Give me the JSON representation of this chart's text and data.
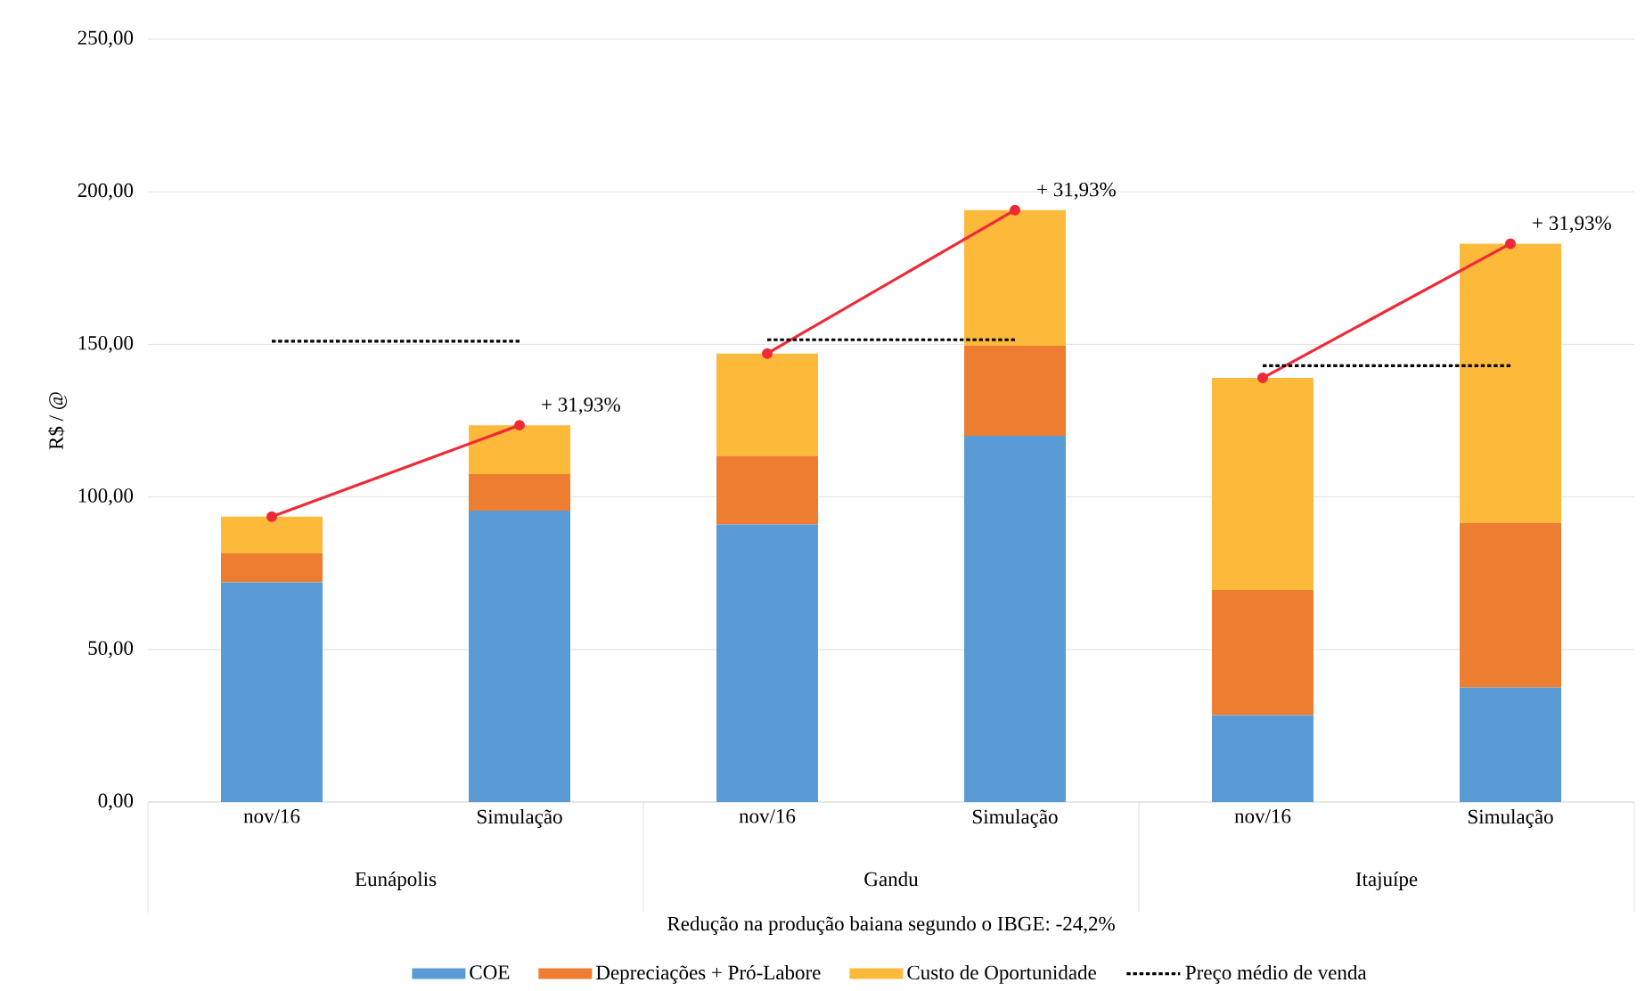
{
  "chart_data": {
    "type": "bar",
    "stacked": true,
    "ylabel": "R$ / @",
    "xlabel": "Redução na produção baiana segundo o IBGE: -24,2%",
    "categories": [
      "nov/16",
      "Simulação",
      "nov/16",
      "Simulação",
      "nov/16",
      "Simulação"
    ],
    "series": [
      {
        "name": "COE",
        "color": "#5b9bd5",
        "values": [
          72,
          95.5,
          91,
          120,
          28.5,
          37.5
        ]
      },
      {
        "name": "Depreciações + Pró-Labore",
        "color": "#ed7d31",
        "values": [
          9.5,
          12,
          22.5,
          29.5,
          41,
          54
        ]
      },
      {
        "name": "Custo de Oportunidade",
        "color": "#fdb93a",
        "values": [
          12,
          16,
          33.5,
          44.5,
          69.5,
          91.5
        ]
      },
      {
        "type": "line",
        "color": "#ee2a37",
        "marker": "circle",
        "line_style": "solid",
        "values": [
          93.5,
          123.5,
          null,
          null,
          null,
          null
        ]
      },
      {
        "type": "line",
        "color": "#ee2a37",
        "marker": "circle",
        "line_style": "solid",
        "values": [
          null,
          null,
          147,
          194,
          null,
          null
        ]
      },
      {
        "type": "line",
        "color": "#ee2a37",
        "marker": "circle",
        "line_style": "solid",
        "values": [
          null,
          null,
          null,
          null,
          139,
          183
        ]
      },
      {
        "type": "line",
        "name": "Preço médio de venda",
        "color": "#000000",
        "marker": "none",
        "line_style": "dotted",
        "values": [
          151,
          151,
          null,
          null,
          null,
          null
        ]
      },
      {
        "type": "line",
        "color": "#000000",
        "marker": "none",
        "line_style": "dotted",
        "values": [
          null,
          null,
          151.5,
          151.5,
          null,
          null
        ]
      },
      {
        "type": "line",
        "color": "#000000",
        "marker": "none",
        "line_style": "dotted",
        "values": [
          null,
          null,
          null,
          null,
          143,
          143
        ]
      }
    ],
    "ylim": [
      0,
      250
    ],
    "yticks": [
      {
        "value": 0,
        "label": "0,00"
      },
      {
        "value": 50,
        "label": "50,00"
      },
      {
        "value": 100,
        "label": "100,00"
      },
      {
        "value": 150,
        "label": "150,00"
      },
      {
        "value": 200,
        "label": "200,00"
      },
      {
        "value": 250,
        "label": "250,00"
      }
    ],
    "grid": "y",
    "legend": "bottom",
    "annotations": [
      "+ 31,93%",
      "+ 31,93%",
      "+ 31,93%",
      "Eunápolis",
      "Gandu",
      "Itajuípe"
    ]
  }
}
